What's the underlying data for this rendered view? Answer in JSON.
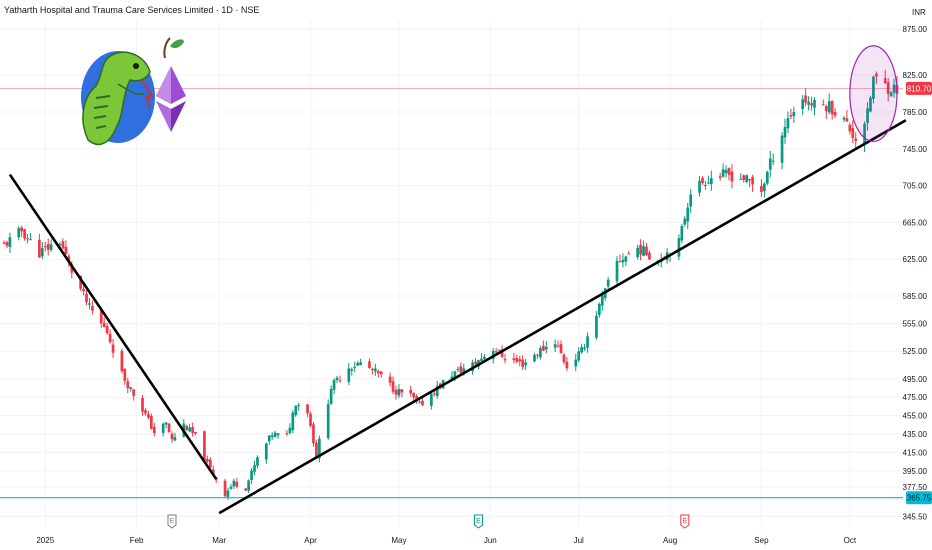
{
  "header": {
    "title": "Yatharth Hospital and Trauma Care Services Limited · 1D · NSE",
    "currency": "INR"
  },
  "price_badges": {
    "last": "810.70",
    "level": "365.75"
  },
  "colors": {
    "up": "#089981",
    "down": "#f23645",
    "level_line": "#00bcd4",
    "last_line": "#f23645",
    "trendline": "#000000",
    "highlight": "#9c27b0",
    "event_icon_down": "#f23645",
    "event_icon_up": "#089981",
    "event_icon_neutral": "#787b86"
  },
  "logo": {
    "icons": [
      "snake-icon",
      "ethereum-icon",
      "apple-leaf-icon"
    ]
  },
  "chart_data": {
    "type": "candlestick",
    "y_axis": {
      "min": 335,
      "max": 885,
      "ticks": [
        "875.00",
        "825.00",
        "785.00",
        "745.00",
        "705.00",
        "665.00",
        "625.00",
        "585.00",
        "555.00",
        "525.00",
        "495.00",
        "475.00",
        "455.00",
        "435.00",
        "415.00",
        "395.00",
        "377.50",
        "345.50"
      ]
    },
    "x_axis": {
      "start": "2024-12-18",
      "end": "2025-10-17",
      "ticks": [
        {
          "label": "2025",
          "date": "2025-01-01"
        },
        {
          "label": "Feb",
          "date": "2025-02-01"
        },
        {
          "label": "Mar",
          "date": "2025-03-01"
        },
        {
          "label": "Apr",
          "date": "2025-04-01"
        },
        {
          "label": "May",
          "date": "2025-05-01"
        },
        {
          "label": "Jun",
          "date": "2025-06-01"
        },
        {
          "label": "Jul",
          "date": "2025-07-01"
        },
        {
          "label": "Aug",
          "date": "2025-08-01"
        },
        {
          "label": "Sep",
          "date": "2025-09-01"
        },
        {
          "label": "Oct",
          "date": "2025-10-01"
        }
      ]
    },
    "horizontal_lines": [
      {
        "value": 365.75,
        "label": "365.75",
        "kind": "support"
      },
      {
        "value": 810.7,
        "label": "810.70",
        "kind": "last"
      }
    ],
    "trendlines": [
      {
        "from": {
          "date": "2024-12-20",
          "value": 717
        },
        "to": {
          "date": "2025-02-28",
          "value": 386
        }
      },
      {
        "from": {
          "date": "2025-03-01",
          "value": 349
        },
        "to": {
          "date": "2025-10-20",
          "value": 776
        }
      }
    ],
    "highlight_ellipse": {
      "center_date": "2025-10-09",
      "center_value": 805,
      "date_halfspan_days": 8,
      "value_halfspan": 52
    },
    "events": [
      {
        "date": "2025-02-13",
        "symbol": "E",
        "kind": "neutral"
      },
      {
        "date": "2025-05-28",
        "symbol": "E",
        "kind": "up"
      },
      {
        "date": "2025-08-06",
        "symbol": "E",
        "kind": "down"
      }
    ],
    "series": {
      "anchors": [
        [
          "2024-12-18",
          640
        ],
        [
          "2024-12-24",
          656
        ],
        [
          "2024-12-30",
          632
        ],
        [
          "2025-01-06",
          645
        ],
        [
          "2025-01-10",
          612
        ],
        [
          "2025-01-16",
          572
        ],
        [
          "2025-01-22",
          546
        ],
        [
          "2025-01-27",
          500
        ],
        [
          "2025-02-03",
          462
        ],
        [
          "2025-02-07",
          437
        ],
        [
          "2025-02-11",
          446
        ],
        [
          "2025-02-13",
          428
        ],
        [
          "2025-02-17",
          445
        ],
        [
          "2025-02-21",
          432
        ],
        [
          "2025-02-25",
          402
        ],
        [
          "2025-02-28",
          386
        ],
        [
          "2025-03-03",
          370
        ],
        [
          "2025-03-06",
          382
        ],
        [
          "2025-03-10",
          377
        ],
        [
          "2025-03-14",
          408
        ],
        [
          "2025-03-19",
          435
        ],
        [
          "2025-03-24",
          432
        ],
        [
          "2025-03-27",
          470
        ],
        [
          "2025-03-31",
          460
        ],
        [
          "2025-04-03",
          412
        ],
        [
          "2025-04-08",
          486
        ],
        [
          "2025-04-14",
          508
        ],
        [
          "2025-04-18",
          512
        ],
        [
          "2025-04-24",
          500
        ],
        [
          "2025-04-30",
          482
        ],
        [
          "2025-05-05",
          476
        ],
        [
          "2025-05-08",
          466
        ],
        [
          "2025-05-13",
          482
        ],
        [
          "2025-05-19",
          500
        ],
        [
          "2025-05-26",
          510
        ],
        [
          "2025-06-02",
          528
        ],
        [
          "2025-06-06",
          518
        ],
        [
          "2025-06-12",
          511
        ],
        [
          "2025-06-18",
          526
        ],
        [
          "2025-06-23",
          536
        ],
        [
          "2025-06-27",
          508
        ],
        [
          "2025-07-02",
          525
        ],
        [
          "2025-07-07",
          566
        ],
        [
          "2025-07-14",
          622
        ],
        [
          "2025-07-21",
          637
        ],
        [
          "2025-07-28",
          625
        ],
        [
          "2025-08-04",
          643
        ],
        [
          "2025-08-08",
          700
        ],
        [
          "2025-08-14",
          713
        ],
        [
          "2025-08-20",
          717
        ],
        [
          "2025-08-26",
          713
        ],
        [
          "2025-09-01",
          700
        ],
        [
          "2025-09-05",
          738
        ],
        [
          "2025-09-10",
          778
        ],
        [
          "2025-09-15",
          800
        ],
        [
          "2025-09-19",
          792
        ],
        [
          "2025-09-24",
          792
        ],
        [
          "2025-09-29",
          776
        ],
        [
          "2025-10-03",
          756
        ],
        [
          "2025-10-07",
          782
        ],
        [
          "2025-10-09",
          822
        ],
        [
          "2025-10-14",
          812
        ],
        [
          "2025-10-17",
          810
        ]
      ]
    }
  }
}
